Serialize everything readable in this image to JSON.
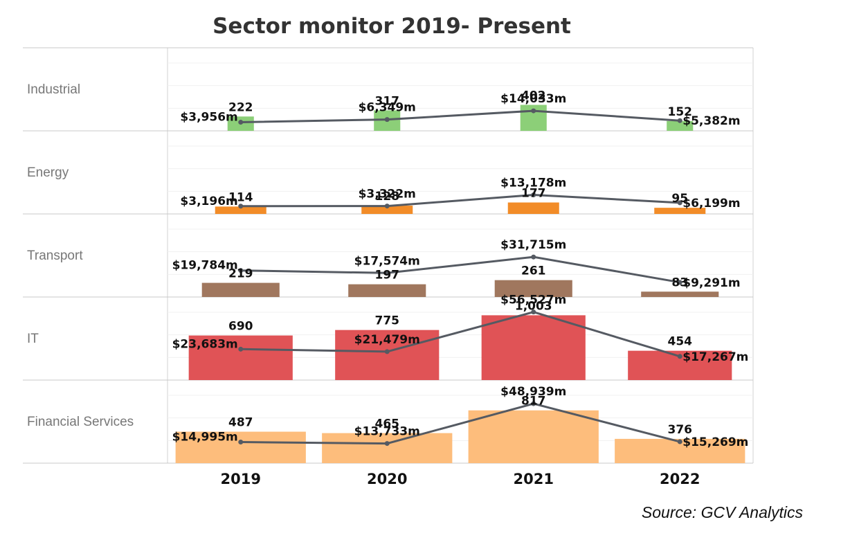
{
  "chart_data": {
    "type": "bar",
    "title": "Sector monitor 2019- Present",
    "source": "Source: GCV Analytics",
    "categories": [
      "2019",
      "2020",
      "2021",
      "2022"
    ],
    "bar_max": 1050,
    "line_max": 60000,
    "series": [
      {
        "name": "Industrial",
        "color": "#8ccf78",
        "bar_width_ratio": 0.18,
        "bar_values": [
          222,
          317,
          402,
          152
        ],
        "bar_labels": [
          "222",
          "317",
          "402",
          "152"
        ],
        "line_values": [
          3956,
          6349,
          14033,
          5382
        ],
        "line_labels": [
          "$3,956m",
          "$6,349m",
          "$14,033m",
          "$5,382m"
        ]
      },
      {
        "name": "Energy",
        "color": "#f28c28",
        "bar_width_ratio": 0.35,
        "bar_values": [
          114,
          128,
          177,
          95
        ],
        "bar_labels": [
          "114",
          "128",
          "177",
          "95"
        ],
        "line_values": [
          3196,
          3322,
          13178,
          6199
        ],
        "line_labels": [
          "$3,196m",
          "$3,322m",
          "$13,178m",
          "$6,199m"
        ]
      },
      {
        "name": "Transport",
        "color": "#a0775e",
        "bar_width_ratio": 0.53,
        "bar_values": [
          219,
          197,
          261,
          83
        ],
        "bar_labels": [
          "219",
          "197",
          "261",
          "83"
        ],
        "line_values": [
          19784,
          17574,
          31715,
          9291
        ],
        "line_labels": [
          "$19,784m",
          "$17,574m",
          "$31,715m",
          "$9,291m"
        ]
      },
      {
        "name": "IT",
        "color": "#e05356",
        "bar_width_ratio": 0.71,
        "bar_values": [
          690,
          775,
          1003,
          454
        ],
        "bar_labels": [
          "690",
          "775",
          "1,003",
          "454"
        ],
        "line_values": [
          23683,
          21479,
          56527,
          17267
        ],
        "line_labels": [
          "$23,683m",
          "$21,479m",
          "$56,527m",
          "$17,267m"
        ]
      },
      {
        "name": "Financial Services",
        "color": "#fdbd7c",
        "bar_width_ratio": 0.89,
        "bar_values": [
          487,
          465,
          817,
          376
        ],
        "bar_labels": [
          "487",
          "465",
          "817",
          "376"
        ],
        "line_values": [
          14995,
          13733,
          48939,
          15269
        ],
        "line_labels": [
          "$14,995m",
          "$13,733m",
          "$48,939m",
          "$15,269m"
        ]
      }
    ],
    "line_color": "#555a62",
    "grid": true
  }
}
